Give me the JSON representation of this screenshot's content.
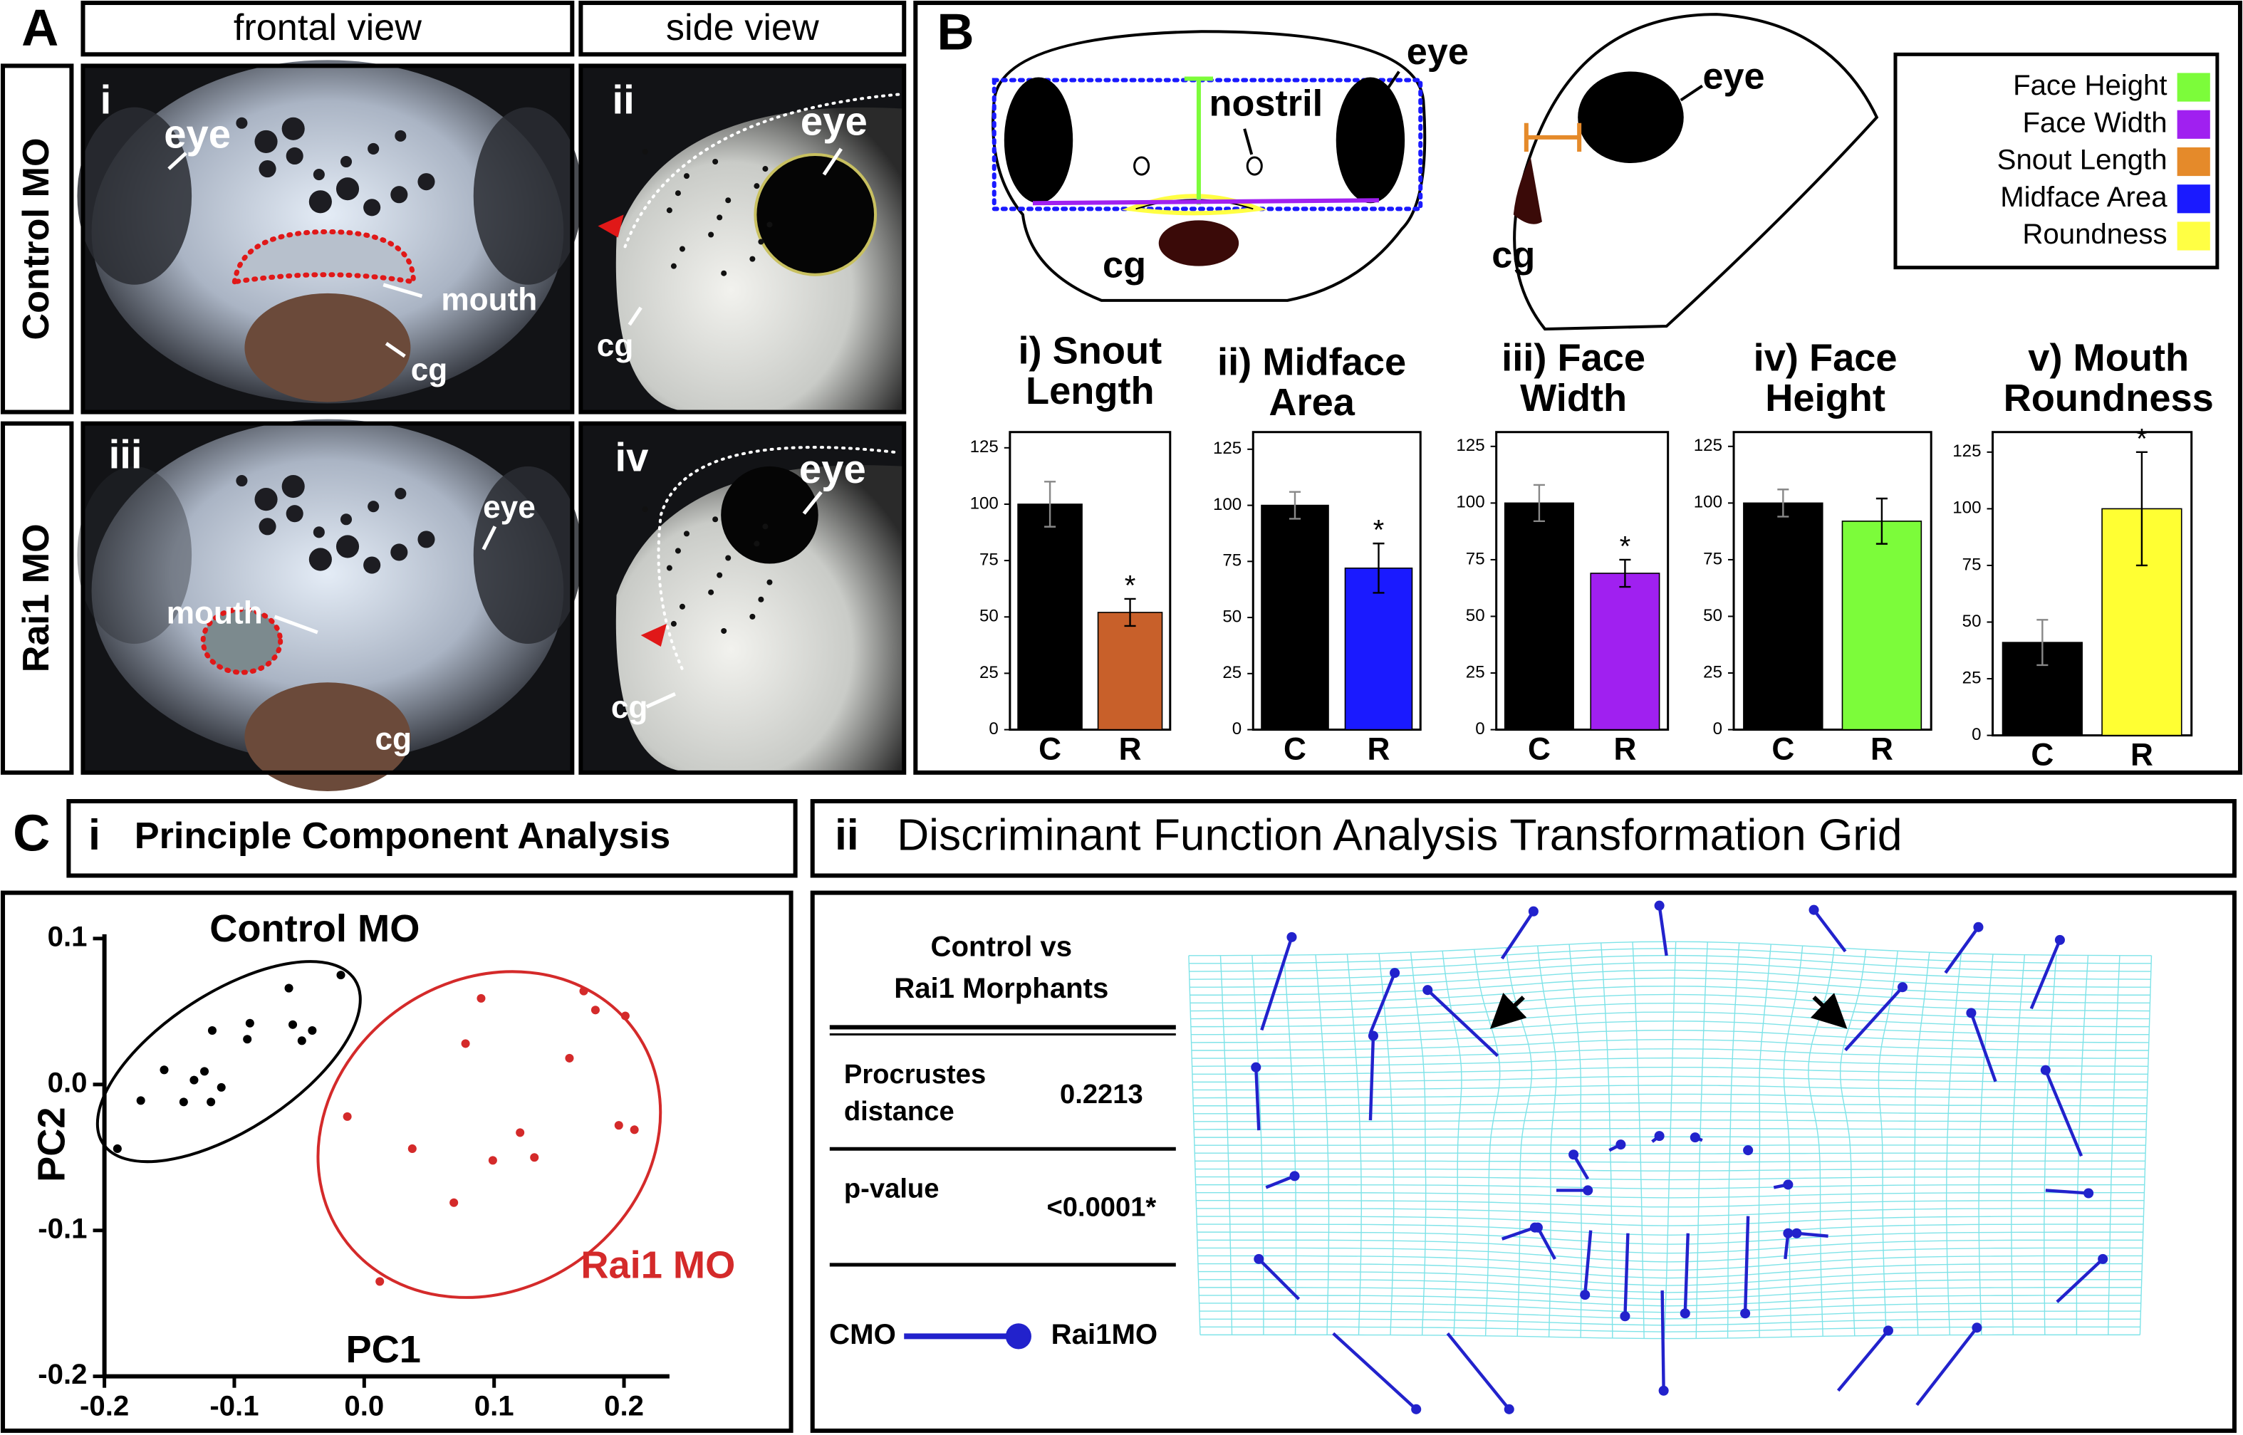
{
  "panel_a": {
    "letter": "A",
    "columns": [
      "frontal view",
      "side view"
    ],
    "rows": [
      "Control MO",
      "Rai1 MO"
    ],
    "images": [
      {
        "numeral": "i",
        "labels": [
          "eye",
          "mouth",
          "cg"
        ]
      },
      {
        "numeral": "ii",
        "labels": [
          "eye",
          "cg"
        ]
      },
      {
        "numeral": "iii",
        "labels": [
          "eye",
          "mouth",
          "cg"
        ]
      },
      {
        "numeral": "iv",
        "labels": [
          "eye",
          "cg"
        ]
      }
    ]
  },
  "panel_b": {
    "letter": "B",
    "frontal_labels": [
      "eye",
      "nostril",
      "cg"
    ],
    "side_labels": [
      "eye",
      "cg"
    ],
    "legend": [
      {
        "name": "Face Height",
        "color": "#7cfc3a"
      },
      {
        "name": "Face Width",
        "color": "#a020f0"
      },
      {
        "name": "Snout Length",
        "color": "#e58a2a"
      },
      {
        "name": "Midface Area",
        "color": "#1a1aff"
      },
      {
        "name": "Roundness",
        "color": "#ffff44"
      }
    ]
  },
  "chart_data": [
    {
      "type": "bar",
      "title_lines": [
        "i) Snout",
        "Length"
      ],
      "categories": [
        "C",
        "R"
      ],
      "values": [
        100,
        52
      ],
      "errors": [
        10,
        6
      ],
      "colors": [
        "#000000",
        "#c8602a"
      ],
      "ylim": [
        0,
        125
      ],
      "yticks": [
        0,
        25,
        50,
        75,
        100,
        125
      ],
      "significant": [
        false,
        true
      ],
      "marker": "*"
    },
    {
      "type": "bar",
      "title_lines": [
        "ii) Midface",
        "Area"
      ],
      "categories": [
        "C",
        "R"
      ],
      "values": [
        100,
        72
      ],
      "errors": [
        6,
        11
      ],
      "colors": [
        "#000000",
        "#1a1aff"
      ],
      "ylim": [
        0,
        125
      ],
      "yticks": [
        0,
        25,
        50,
        75,
        100,
        125
      ],
      "significant": [
        false,
        true
      ],
      "marker": "*"
    },
    {
      "type": "bar",
      "title_lines": [
        "iii) Face",
        "Width"
      ],
      "categories": [
        "C",
        "R"
      ],
      "values": [
        100,
        69
      ],
      "errors": [
        8,
        6
      ],
      "colors": [
        "#000000",
        "#a020f0"
      ],
      "ylim": [
        0,
        125
      ],
      "yticks": [
        0,
        25,
        50,
        75,
        100,
        125
      ],
      "significant": [
        false,
        true
      ],
      "marker": "*"
    },
    {
      "type": "bar",
      "title_lines": [
        "iv) Face",
        "Height"
      ],
      "categories": [
        "C",
        "R"
      ],
      "values": [
        100,
        92
      ],
      "errors": [
        6,
        10
      ],
      "colors": [
        "#000000",
        "#7cfc3a"
      ],
      "ylim": [
        0,
        125
      ],
      "yticks": [
        0,
        25,
        50,
        75,
        100,
        125
      ],
      "significant": [
        false,
        false
      ],
      "marker": "*"
    },
    {
      "type": "bar",
      "title_lines": [
        "v) Mouth",
        "Roundness"
      ],
      "categories": [
        "C",
        "R"
      ],
      "values": [
        41,
        100
      ],
      "errors": [
        10,
        25
      ],
      "colors": [
        "#000000",
        "#ffff33"
      ],
      "ylim": [
        0,
        125
      ],
      "yticks": [
        0,
        25,
        50,
        75,
        100,
        125
      ],
      "significant": [
        false,
        true
      ],
      "marker": "*"
    },
    {
      "type": "scatter",
      "xlabel": "PC1",
      "ylabel": "PC2",
      "xlim": [
        -0.2,
        0.235
      ],
      "ylim": [
        -0.2,
        0.1
      ],
      "xticks": [
        -0.2,
        -0.1,
        {
          "value": 0,
          "label": "0.0"
        },
        0.1,
        0.2
      ],
      "yticks": [
        0.1,
        {
          "value": 0,
          "label": "0.0"
        },
        -0.1,
        -0.2
      ],
      "series": [
        {
          "name": "Control MO",
          "color": "#000000",
          "x": [
            -0.018,
            -0.058,
            -0.088,
            -0.055,
            -0.117,
            -0.04,
            -0.048,
            -0.09,
            -0.154,
            -0.123,
            -0.172,
            -0.131,
            -0.11,
            -0.139,
            -0.118,
            -0.19
          ],
          "values": [
            0.075,
            0.066,
            0.042,
            0.041,
            0.037,
            0.037,
            0.03,
            0.031,
            0.01,
            0.009,
            -0.011,
            0.003,
            -0.002,
            -0.012,
            -0.012,
            -0.044
          ]
        },
        {
          "name": "Rai1 MO",
          "color": "#d42a2a",
          "x": [
            0.169,
            0.09,
            0.178,
            0.201,
            0.078,
            0.158,
            -0.013,
            0.037,
            0.12,
            0.099,
            0.131,
            0.196,
            0.208,
            0.069,
            0.012
          ],
          "values": [
            0.064,
            0.059,
            0.051,
            0.047,
            0.028,
            0.018,
            -0.022,
            -0.044,
            -0.033,
            -0.052,
            -0.05,
            -0.028,
            -0.031,
            -0.081,
            -0.135
          ]
        }
      ]
    }
  ],
  "panel_c": {
    "letter": "C",
    "left_numeral": "i",
    "left_title": "Principle Component Analysis",
    "right_numeral": "ii",
    "right_title": "Discriminant Function Analysis Transformation Grid",
    "table": {
      "header_lines": [
        "Control vs",
        "Rai1 Morphants"
      ],
      "rows": [
        {
          "label_lines": [
            "Procrustes",
            "distance"
          ],
          "value": "0.2213"
        },
        {
          "label_lines": [
            "p-value"
          ],
          "value": "<0.0001*"
        }
      ],
      "legend": [
        "CMO",
        "Rai1MO"
      ]
    }
  }
}
